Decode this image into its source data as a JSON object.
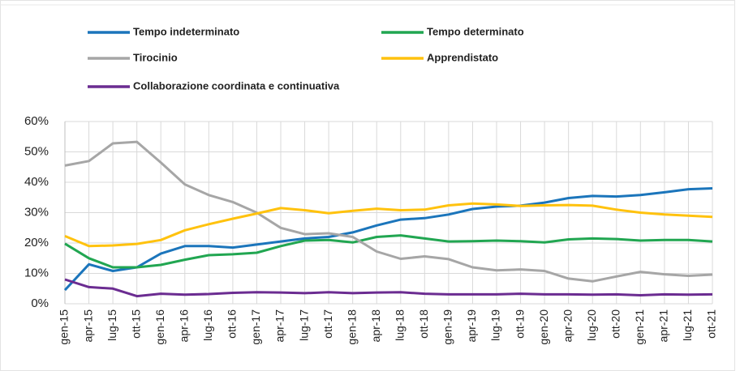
{
  "chart_data": {
    "type": "line",
    "categories": [
      "gen-15",
      "apr-15",
      "lug-15",
      "ott-15",
      "gen-16",
      "apr-16",
      "lug-16",
      "ott-16",
      "gen-17",
      "apr-17",
      "lug-17",
      "ott-17",
      "gen-18",
      "apr-18",
      "lug-18",
      "ott-18",
      "gen-19",
      "apr-19",
      "lug-19",
      "ott-19",
      "gen-20",
      "apr-20",
      "lug-20",
      "ott-20",
      "gen-21",
      "apr-21",
      "lug-21",
      "ott-21"
    ],
    "series": [
      {
        "name": "Tempo indeterminato",
        "color": "#1b75bb",
        "values": [
          4.5,
          13,
          10.8,
          12,
          16.5,
          19,
          19,
          18.5,
          19.5,
          20.5,
          21.5,
          22,
          23.5,
          25.8,
          27.7,
          28.2,
          29.4,
          31.2,
          32,
          32.3,
          33.3,
          34.8,
          35.5,
          35.3,
          35.8,
          36.7,
          37.7,
          38
        ]
      },
      {
        "name": "Tempo determinato",
        "color": "#21a651",
        "values": [
          19.8,
          15,
          12,
          12,
          12.8,
          14.5,
          16,
          16.3,
          16.8,
          19,
          20.8,
          21,
          20.2,
          22,
          22.5,
          21.5,
          20.5,
          20.6,
          20.8,
          20.6,
          20.2,
          21.2,
          21.5,
          21.3,
          20.8,
          21,
          21,
          20.5
        ]
      },
      {
        "name": "Tirocinio",
        "color": "#a6a6a6",
        "values": [
          45.5,
          47,
          52.8,
          53.3,
          46.5,
          39.3,
          35.8,
          33.5,
          30,
          25,
          22.9,
          23.2,
          22,
          17.2,
          14.8,
          15.6,
          14.7,
          12,
          11,
          11.3,
          10.8,
          8.3,
          7.4,
          9,
          10.5,
          9.7,
          9.2,
          9.6
        ]
      },
      {
        "name": "Apprendistato",
        "color": "#ffc20e",
        "values": [
          22.3,
          19,
          19.2,
          19.7,
          21,
          24.2,
          26.2,
          28,
          29.7,
          31.5,
          30.8,
          29.8,
          30.6,
          31.3,
          30.8,
          31,
          32.4,
          33,
          32.7,
          32.2,
          32.4,
          32.5,
          32.3,
          31,
          30,
          29.4,
          29,
          28.6
        ]
      },
      {
        "name": "Collaborazione coordinata e continuativa",
        "color": "#6b2c91",
        "values": [
          8,
          5.5,
          5,
          2.5,
          3.3,
          3,
          3.2,
          3.6,
          3.8,
          3.7,
          3.5,
          3.8,
          3.5,
          3.7,
          3.8,
          3.3,
          3.1,
          3.1,
          3.1,
          3.3,
          3.1,
          3.1,
          3,
          3.1,
          2.8,
          3.1,
          3,
          3.1
        ]
      }
    ],
    "ylim": [
      0,
      60
    ],
    "yticks": [
      {
        "value": 0,
        "label": "0%"
      },
      {
        "value": 10,
        "label": "10%"
      },
      {
        "value": 20,
        "label": "20%"
      },
      {
        "value": 30,
        "label": "30%"
      },
      {
        "value": 40,
        "label": "40%"
      },
      {
        "value": 50,
        "label": "50%"
      },
      {
        "value": 60,
        "label": "60%"
      }
    ],
    "grid": true
  }
}
